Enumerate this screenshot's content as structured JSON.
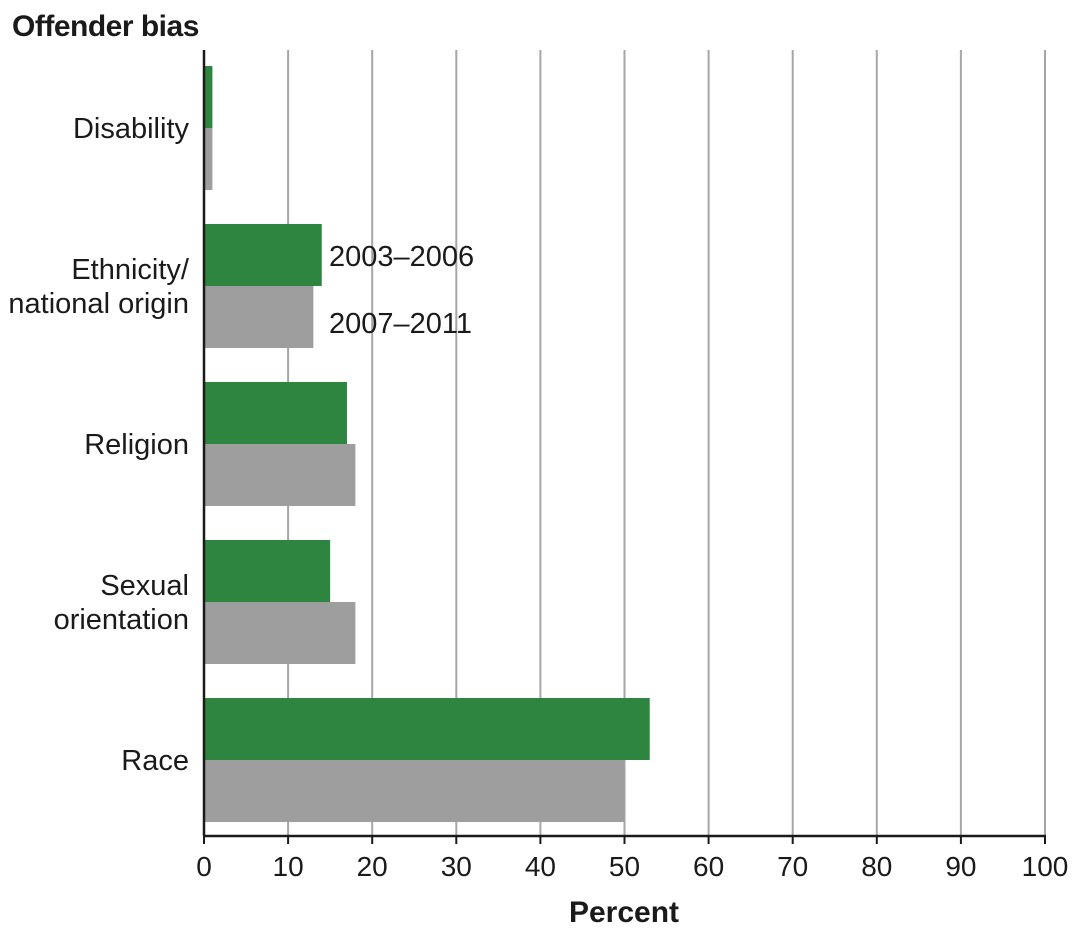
{
  "chart_data": {
    "type": "bar",
    "orientation": "horizontal",
    "title": "",
    "ylabel": "Offender bias",
    "xlabel": "Percent",
    "categories": [
      "Disability",
      "Ethnicity/\nnational origin",
      "Religion",
      "Sexual\norientation",
      "Race"
    ],
    "series": [
      {
        "name": "2003–2006",
        "color": "#2e8540",
        "values": [
          1,
          14,
          17,
          15,
          53
        ]
      },
      {
        "name": "2007–2011",
        "color": "#9e9e9e",
        "values": [
          1,
          13,
          18,
          18,
          50
        ]
      }
    ],
    "xlim": [
      0,
      100
    ],
    "xticks": [
      0,
      10,
      20,
      30,
      40,
      50,
      60,
      70,
      80,
      90,
      100
    ],
    "grid": "vertical",
    "legend": "inline, beside Ethnicity/national origin bars"
  }
}
